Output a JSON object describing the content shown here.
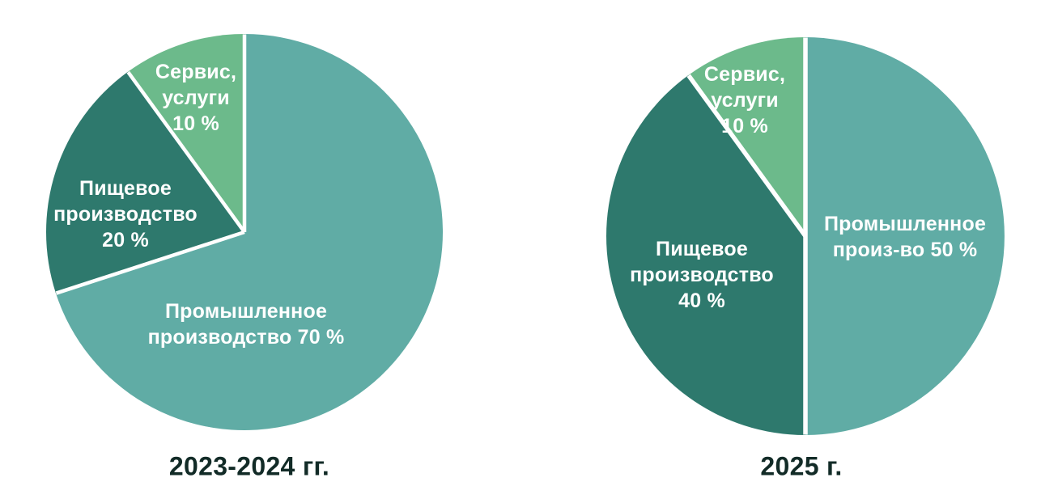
{
  "chart_data": [
    {
      "type": "pie",
      "title": "2023-2024 гг.",
      "unit": "%",
      "direction": "clockwise",
      "start_angle_deg": 0,
      "legend": "none",
      "categories": [
        "Промышленное производство",
        "Пищевое производство",
        "Сервис, услуги"
      ],
      "values": [
        70,
        20,
        10
      ],
      "colors": [
        "#60ACA5",
        "#2E796D",
        "#6CBA8B"
      ],
      "slice_labels": [
        "Промышленное\nпроизводство 70 %",
        "Пищевое\nпроизводство\n20 %",
        "Сервис,\nуслуги\n10 %"
      ],
      "slice_label_color": "#FFFFFF",
      "caption_color": "#122B27",
      "separator_color": "#FFFFFF"
    },
    {
      "type": "pie",
      "title": "2025 г.",
      "unit": "%",
      "direction": "clockwise",
      "start_angle_deg": 0,
      "legend": "none",
      "categories": [
        "Промышленное производство",
        "Пищевое производство",
        "Сервис, услуги"
      ],
      "values": [
        50,
        40,
        10
      ],
      "colors": [
        "#60ACA5",
        "#2E796D",
        "#6CBA8B"
      ],
      "slice_labels": [
        "Промышленное\nпроиз-во 50 %",
        "Пищевое\nпроизводство\n40 %",
        "Сервис,\nуслуги\n10 %"
      ],
      "slice_label_color": "#FFFFFF",
      "caption_color": "#122B27",
      "separator_color": "#FFFFFF"
    }
  ]
}
